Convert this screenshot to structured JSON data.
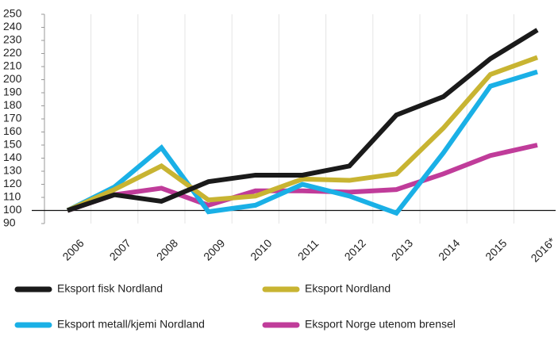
{
  "chart_data": {
    "type": "line",
    "categories": [
      "2006",
      "2007",
      "2008",
      "2009",
      "2010",
      "2011",
      "2012",
      "2013",
      "2014",
      "2015",
      "2016*"
    ],
    "series": [
      {
        "name": "Eksport fisk Nordland",
        "color": "#1a1a1a",
        "values": [
          100,
          112,
          107,
          122,
          127,
          127,
          134,
          173,
          187,
          216,
          238
        ]
      },
      {
        "name": "Eksport Nordland",
        "color": "#c8b432",
        "values": [
          100,
          116,
          134,
          108,
          111,
          124,
          123,
          128,
          163,
          204,
          217
        ]
      },
      {
        "name": "Eksport metall/kjemi Nordland",
        "color": "#1ab0e6",
        "values": [
          100,
          118,
          148,
          99,
          104,
          120,
          111,
          98,
          144,
          195,
          206
        ]
      },
      {
        "name": "Eksport Norge utenom brensel",
        "color": "#c03c9a",
        "values": [
          100,
          112,
          117,
          104,
          115,
          115,
          114,
          116,
          128,
          142,
          150
        ]
      }
    ],
    "ylim": [
      90,
      250
    ],
    "yticks": [
      90,
      100,
      110,
      120,
      130,
      140,
      150,
      160,
      170,
      180,
      190,
      200,
      210,
      220,
      230,
      240,
      250
    ],
    "reference_line": 100,
    "grid": true
  }
}
